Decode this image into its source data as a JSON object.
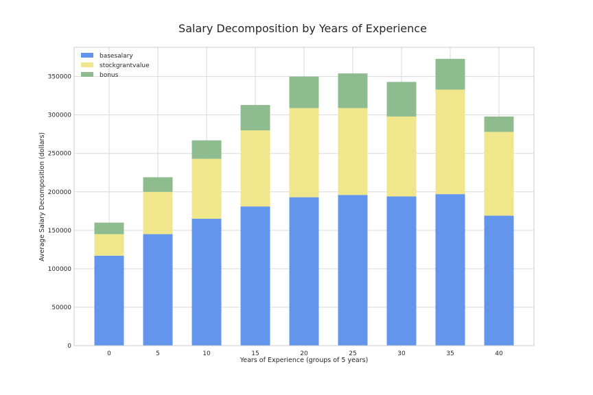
{
  "chart_data": {
    "type": "bar",
    "stacked": true,
    "title": "Salary Decomposition by Years of Experience",
    "xlabel": "Years of Experience (groups of 5 years)",
    "ylabel": "Average Salary Decomposition (dollars)",
    "categories": [
      "0",
      "5",
      "10",
      "15",
      "20",
      "25",
      "30",
      "35",
      "40"
    ],
    "ylim": [
      0,
      388000
    ],
    "yticks": [
      0,
      50000,
      100000,
      150000,
      200000,
      250000,
      300000,
      350000
    ],
    "grid": true,
    "legend_position": "top-left",
    "series": [
      {
        "name": "basesalary",
        "color": "#6495ED",
        "values": [
          117000,
          145000,
          165000,
          181000,
          193000,
          196000,
          194000,
          197000,
          169000
        ]
      },
      {
        "name": "stockgrantvalue",
        "color": "#F0E68C",
        "values": [
          28000,
          55000,
          78000,
          99000,
          116000,
          113000,
          104000,
          136000,
          109000
        ]
      },
      {
        "name": "bonus",
        "color": "#8FBC8F",
        "values": [
          15000,
          19000,
          24000,
          33000,
          41000,
          45000,
          45000,
          40000,
          20000
        ]
      }
    ]
  }
}
